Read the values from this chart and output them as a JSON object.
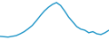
{
  "values": [
    83.5,
    83.4,
    83.3,
    83.5,
    83.7,
    84.2,
    84.8,
    85.6,
    86.5,
    87.8,
    89.2,
    90.5,
    91.5,
    92.3,
    92.8,
    92.0,
    90.5,
    88.8,
    87.5,
    86.2,
    85.5,
    85.2,
    84.5,
    84.8,
    84.2,
    84.0,
    84.5,
    85.2
  ],
  "line_color": "#2196c8",
  "linewidth": 1.0,
  "background_color": "#ffffff",
  "ylim_min": 82.5,
  "ylim_max": 93.5
}
